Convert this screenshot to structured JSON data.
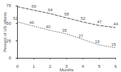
{
  "chart_data": {
    "type": "line",
    "x": [
      0,
      1,
      2,
      3,
      4,
      5,
      6
    ],
    "series": [
      {
        "color": "#555555",
        "line_style": "dashed",
        "values": [
          74,
          69,
          64,
          58,
          52,
          47,
          44
        ],
        "value_labels": [
          null,
          "69",
          "64",
          "58",
          "52",
          "47",
          "44"
        ]
      },
      {
        "color": "#777777",
        "line_style": "dotted",
        "values": [
          52,
          46,
          40,
          35,
          27,
          19,
          15
        ]
      }
    ],
    "x_label": "Months",
    "y_label": "Percent of US infants",
    "xlim": [
      0,
      6
    ],
    "xticks": [
      0,
      1,
      2,
      3,
      4,
      5,
      6
    ],
    "ylim": [
      0,
      75
    ],
    "yticks": [
      0,
      25,
      50,
      75
    ],
    "data_labels": true,
    "grid": false
  }
}
